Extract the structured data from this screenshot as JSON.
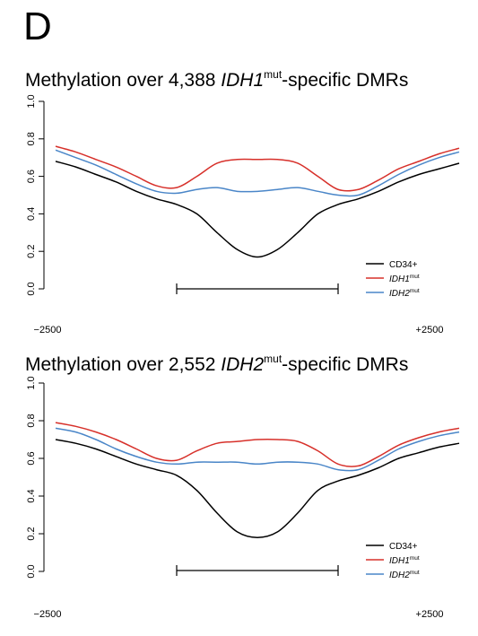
{
  "panel_label": "D",
  "chart_data": [
    {
      "type": "line",
      "title": {
        "prefix": "Methylation over 4,388 ",
        "gene": "IDH1",
        "superscript": "mut",
        "suffix": "-specific DMRs"
      },
      "xlabel": "",
      "ylabel": "",
      "x_tick_labels": [
        "−2500",
        "+2500"
      ],
      "xlim": [
        -2500,
        2500
      ],
      "ylim": [
        0,
        1
      ],
      "y_ticks": [
        0,
        0.2,
        0.4,
        0.6,
        0.8,
        1
      ],
      "y_tick_labels": [
        "0.0",
        "0.2",
        "0.4",
        "0.6",
        "0.8",
        "1.0"
      ],
      "grid": false,
      "legend_position": "bottom-right",
      "region_bar": [
        -1000,
        1000
      ],
      "x": [
        -2500,
        -2250,
        -2000,
        -1750,
        -1500,
        -1250,
        -1000,
        -750,
        -500,
        -250,
        0,
        250,
        500,
        750,
        1000,
        1250,
        1500,
        1750,
        2000,
        2250,
        2500
      ],
      "series": [
        {
          "name": "CD34+",
          "name_italic": false,
          "name_superscript": "",
          "color": "#000000",
          "values": [
            0.68,
            0.65,
            0.61,
            0.57,
            0.52,
            0.48,
            0.45,
            0.4,
            0.3,
            0.21,
            0.17,
            0.21,
            0.3,
            0.4,
            0.45,
            0.48,
            0.52,
            0.57,
            0.61,
            0.64,
            0.67
          ]
        },
        {
          "name": "IDH1",
          "name_italic": true,
          "name_superscript": "mut",
          "color": "#d7302a",
          "values": [
            0.76,
            0.73,
            0.69,
            0.65,
            0.6,
            0.55,
            0.54,
            0.6,
            0.67,
            0.69,
            0.69,
            0.69,
            0.67,
            0.6,
            0.53,
            0.53,
            0.58,
            0.64,
            0.68,
            0.72,
            0.75
          ]
        },
        {
          "name": "IDH2",
          "name_italic": true,
          "name_superscript": "mut",
          "color": "#4a86c8",
          "values": [
            0.74,
            0.7,
            0.66,
            0.61,
            0.56,
            0.52,
            0.51,
            0.53,
            0.54,
            0.52,
            0.52,
            0.53,
            0.54,
            0.52,
            0.5,
            0.5,
            0.55,
            0.61,
            0.66,
            0.7,
            0.73
          ]
        }
      ]
    },
    {
      "type": "line",
      "title": {
        "prefix": "Methylation over 2,552 ",
        "gene": "IDH2",
        "superscript": "mut",
        "suffix": "-specific DMRs"
      },
      "xlabel": "",
      "ylabel": "",
      "x_tick_labels": [
        "−2500",
        "+2500"
      ],
      "xlim": [
        -2500,
        2500
      ],
      "ylim": [
        0,
        1
      ],
      "y_ticks": [
        0,
        0.2,
        0.4,
        0.6,
        0.8,
        1
      ],
      "y_tick_labels": [
        "0.0",
        "0.2",
        "0.4",
        "0.6",
        "0.8",
        "1.0"
      ],
      "grid": false,
      "legend_position": "bottom-right",
      "region_bar": [
        -1000,
        1000
      ],
      "x": [
        -2500,
        -2250,
        -2000,
        -1750,
        -1500,
        -1250,
        -1000,
        -750,
        -500,
        -250,
        0,
        250,
        500,
        750,
        1000,
        1250,
        1500,
        1750,
        2000,
        2250,
        2500
      ],
      "series": [
        {
          "name": "CD34+",
          "name_italic": false,
          "name_superscript": "",
          "color": "#000000",
          "values": [
            0.7,
            0.68,
            0.65,
            0.61,
            0.57,
            0.54,
            0.51,
            0.43,
            0.31,
            0.21,
            0.18,
            0.21,
            0.31,
            0.43,
            0.48,
            0.51,
            0.55,
            0.6,
            0.63,
            0.66,
            0.68
          ]
        },
        {
          "name": "IDH1",
          "name_italic": true,
          "name_superscript": "mut",
          "color": "#d7302a",
          "values": [
            0.79,
            0.77,
            0.74,
            0.7,
            0.65,
            0.6,
            0.59,
            0.64,
            0.68,
            0.69,
            0.7,
            0.7,
            0.69,
            0.64,
            0.57,
            0.56,
            0.61,
            0.67,
            0.71,
            0.74,
            0.76
          ]
        },
        {
          "name": "IDH2",
          "name_italic": true,
          "name_superscript": "mut",
          "color": "#4a86c8",
          "values": [
            0.76,
            0.74,
            0.7,
            0.65,
            0.61,
            0.58,
            0.57,
            0.58,
            0.58,
            0.58,
            0.57,
            0.58,
            0.58,
            0.57,
            0.54,
            0.54,
            0.59,
            0.65,
            0.69,
            0.72,
            0.74
          ]
        }
      ]
    }
  ]
}
